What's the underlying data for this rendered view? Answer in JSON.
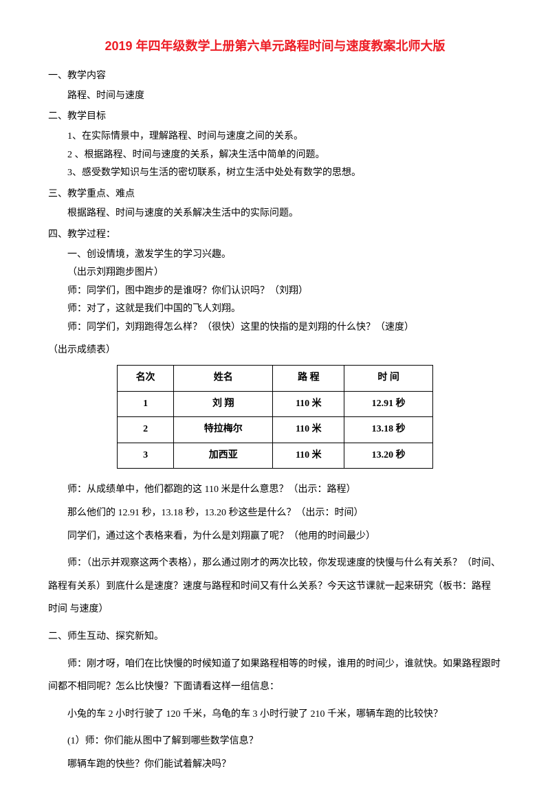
{
  "title_color": "#ed1c24",
  "text_color": "#000000",
  "background_color": "#ffffff",
  "title": "2019 年四年级数学上册第六单元路程时间与速度教案北师大版",
  "s1": {
    "head": "一、教学内容",
    "p1": "路程、时间与速度"
  },
  "s2": {
    "head": "二、教学目标",
    "p1": "1、在实际情景中，理解路程、时间与速度之间的关系。",
    "p2": "2 、根据路程、时间与速度的关系，解决生活中简单的问题。",
    "p3": "3、感受数学知识与生活的密切联系，树立生活中处处有数学的思想。"
  },
  "s3": {
    "head": "三、教学重点、难点",
    "p1": "根据路程、时间与速度的关系解决生活中的实际问题。"
  },
  "s4": {
    "head": "四、教学过程：",
    "p1": "一、创设情境，激发学生的学习兴趣。",
    "p2": "（出示刘翔跑步图片）",
    "p3": "师：同学们，图中跑步的是谁呀？你们认识吗？（刘翔）",
    "p4": "师：对了，这就是我们中国的飞人刘翔。",
    "p5": "师：同学们，刘翔跑得怎么样？（很快）这里的快指的是刘翔的什么快？（速度）"
  },
  "paren1": "（出示成绩表）",
  "table": {
    "border_color": "#000000",
    "columns": [
      "名次",
      "姓名",
      "路 程",
      "时 间"
    ],
    "rows": [
      [
        "1",
        "刘  翔",
        "110 米",
        "12.91 秒"
      ],
      [
        "2",
        "特拉梅尔",
        "110 米",
        "13.18 秒"
      ],
      [
        "3",
        "加西亚",
        "110 米",
        "13.20 秒"
      ]
    ]
  },
  "after_table": {
    "p1": "师：从成绩单中，他们都跑的这 110 米是什么意思？（出示：路程）",
    "p2": "那么他们的 12.91 秒，13.18 秒，13.20 秒这些是什么？（出示：时间）",
    "p3": "同学们，通过这个表格来看，为什么是刘翔赢了呢？（他用的时间最少）",
    "p4": "师：（出示并观察这两个表格），那么通过刚才的两次比较，你发现速度的快慢与什么有关系？（时间、路程有关系）到底什么是速度？速度与路程和时间又有什么关系？今天这节课就一起来研究（板书：路程 时间 与速度）"
  },
  "s5": {
    "head": "二、师生互动、探究新知。",
    "p1": "师：刚才呀，咱们在比快慢的时候知道了如果路程相等的时候，谁用的时间少，谁就快。如果路程跟时间都不相同呢？怎么比快慢？下面请看这样一组信息：",
    "p2": "小兔的车 2 小时行驶了 120 千米，乌龟的车 3 小时行驶了 210 千米，哪辆车跑的比较快？",
    "p3": "(1）师：你们能从图中了解到哪些数学信息？",
    "p4": "哪辆车跑的快些？你们能试着解决吗？"
  }
}
